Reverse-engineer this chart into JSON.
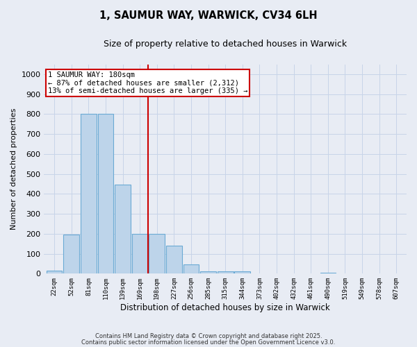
{
  "title1": "1, SAUMUR WAY, WARWICK, CV34 6LH",
  "title2": "Size of property relative to detached houses in Warwick",
  "xlabel": "Distribution of detached houses by size in Warwick",
  "ylabel": "Number of detached properties",
  "bin_labels": [
    "22sqm",
    "52sqm",
    "81sqm",
    "110sqm",
    "139sqm",
    "169sqm",
    "198sqm",
    "227sqm",
    "256sqm",
    "285sqm",
    "315sqm",
    "344sqm",
    "373sqm",
    "402sqm",
    "432sqm",
    "461sqm",
    "490sqm",
    "519sqm",
    "549sqm",
    "578sqm",
    "607sqm"
  ],
  "bar_values": [
    15,
    195,
    800,
    800,
    445,
    200,
    200,
    140,
    48,
    13,
    10,
    10,
    0,
    0,
    0,
    0,
    5,
    0,
    0,
    0,
    0
  ],
  "bar_color": "#bdd4ea",
  "bar_edge_color": "#6aaad4",
  "vline_color": "#cc0000",
  "vline_pos": 5.5,
  "annotation_text": "1 SAUMUR WAY: 180sqm\n← 87% of detached houses are smaller (2,312)\n13% of semi-detached houses are larger (335) →",
  "annotation_box_facecolor": "#ffffff",
  "annotation_box_edgecolor": "#cc0000",
  "ylim": [
    0,
    1050
  ],
  "yticks": [
    0,
    100,
    200,
    300,
    400,
    500,
    600,
    700,
    800,
    900,
    1000
  ],
  "grid_color": "#c8d4e8",
  "background_color": "#e8ecf4",
  "footer1": "Contains HM Land Registry data © Crown copyright and database right 2025.",
  "footer2": "Contains public sector information licensed under the Open Government Licence v3.0."
}
